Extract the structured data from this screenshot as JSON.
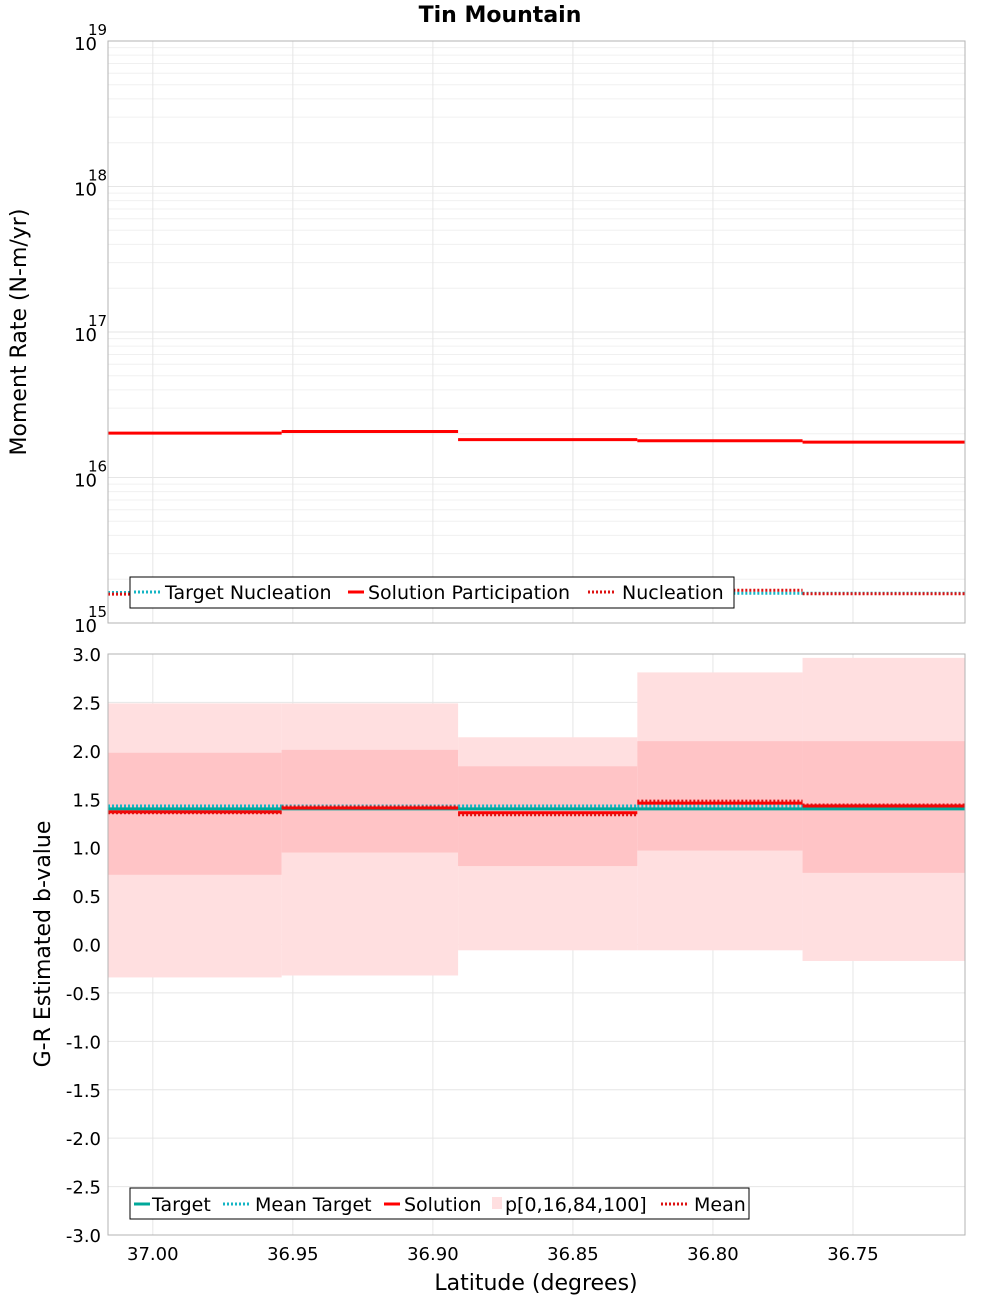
{
  "title": "Tin Mountain",
  "x_label": "Latitude (degrees)",
  "x_ticks": [
    "37.00",
    "36.95",
    "36.90",
    "36.85",
    "36.80",
    "36.75"
  ],
  "colors": {
    "target": "#00a89a",
    "mean_target": "#14b5c4",
    "solution": "#ff0000",
    "mean": "#dd1111",
    "band_outer": "#ffdfe0",
    "band_inner": "#ffc4c6",
    "grid": "#e6e6e6",
    "frame": "#b3b3b3"
  },
  "chart_data": [
    {
      "type": "line",
      "id": "moment",
      "scale": "log",
      "ylabel": "Moment Rate (N-m/yr)",
      "ylim": [
        1000000000000000.0,
        1e+19
      ],
      "xlim": [
        37.016,
        36.71
      ],
      "y_ticks": [
        {
          "base": "10",
          "exp": "15"
        },
        {
          "base": "10",
          "exp": "16"
        },
        {
          "base": "10",
          "exp": "17"
        },
        {
          "base": "10",
          "exp": "18"
        },
        {
          "base": "10",
          "exp": "19"
        }
      ],
      "bins": [
        [
          37.016,
          36.954
        ],
        [
          36.954,
          36.891
        ],
        [
          36.891,
          36.827
        ],
        [
          36.827,
          36.768
        ],
        [
          36.768,
          36.71
        ]
      ],
      "series": [
        {
          "name": "Target Nucleation",
          "style": "dotted",
          "color": "mean_target",
          "values": [
            1620000000000000.0,
            1650000000000000.0,
            1670000000000000.0,
            1600000000000000.0,
            1600000000000000.0
          ]
        },
        {
          "name": "Solution Participation",
          "style": "solid",
          "color": "solution",
          "values": [
            2.02e+16,
            2.07e+16,
            1.82e+16,
            1.79e+16,
            1.75e+16
          ]
        },
        {
          "name": "Nucleation",
          "style": "dotted",
          "color": "mean",
          "values": [
            1580000000000000.0,
            1600000000000000.0,
            1570000000000000.0,
            1680000000000000.0,
            1590000000000000.0
          ]
        }
      ],
      "legend": [
        "Target Nucleation",
        "Solution Participation",
        "Nucleation"
      ]
    },
    {
      "type": "line",
      "id": "bvalue",
      "scale": "linear",
      "ylabel": "G-R Estimated b-value",
      "ylim": [
        -3.0,
        3.0
      ],
      "xlim": [
        37.016,
        36.71
      ],
      "y_ticks": [
        "3.0",
        "2.5",
        "2.0",
        "1.5",
        "1.0",
        "0.5",
        "0.0",
        "-0.5",
        "-1.0",
        "-1.5",
        "-2.0",
        "-2.5",
        "-3.0"
      ],
      "bins": [
        [
          37.016,
          36.954
        ],
        [
          36.954,
          36.891
        ],
        [
          36.891,
          36.827
        ],
        [
          36.827,
          36.768
        ],
        [
          36.768,
          36.71
        ]
      ],
      "series": [
        {
          "name": "Target",
          "style": "solid",
          "color": "target",
          "values": [
            1.4,
            1.4,
            1.4,
            1.4,
            1.4
          ]
        },
        {
          "name": "Mean Target",
          "style": "dotted",
          "color": "mean_target",
          "values": [
            1.43,
            1.43,
            1.43,
            1.43,
            1.43
          ]
        },
        {
          "name": "Solution",
          "style": "solid",
          "color": "solution",
          "values": [
            1.37,
            1.41,
            1.36,
            1.46,
            1.43
          ]
        },
        {
          "name": "Mean",
          "style": "dotted",
          "color": "mean",
          "values": [
            1.36,
            1.42,
            1.34,
            1.48,
            1.44
          ]
        }
      ],
      "bands": {
        "name": "p[0,16,84,100]",
        "p0": [
          -0.34,
          -0.32,
          -0.06,
          -0.06,
          -0.17
        ],
        "p16": [
          0.72,
          0.95,
          0.81,
          0.97,
          0.74
        ],
        "p84": [
          1.98,
          2.01,
          1.84,
          2.1,
          2.1
        ],
        "p100": [
          2.49,
          2.49,
          2.14,
          2.81,
          2.96
        ]
      },
      "legend": [
        "Target",
        "Mean Target",
        "Solution",
        "p[0,16,84,100]",
        "Mean"
      ]
    }
  ]
}
